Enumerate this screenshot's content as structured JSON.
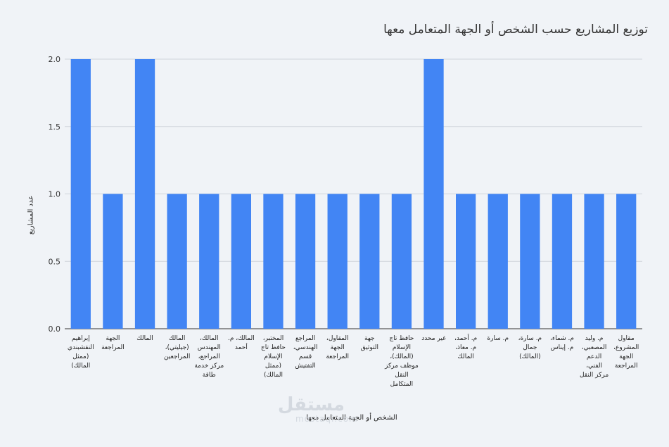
{
  "chart_data": {
    "type": "bar",
    "title": "توزيع المشاريع حسب الشخص أو الجهة المتعامل معها",
    "xlabel": "الشخص أو الجهة المتعامل معها",
    "ylabel": "عدد المشاريع",
    "ylim": [
      0,
      2.0
    ],
    "yticks": [
      "0.0",
      "0.5",
      "1.0",
      "1.5",
      "2.0"
    ],
    "grid": true,
    "bar_color": "#4285f4",
    "categories": [
      "إبراهيم النقشبندي (ممثل المالك)",
      "الجهة المراجعة",
      "المالك",
      "المالك (جيليتي)، المراجعين",
      "المالك، المهندس المراجع، مركز خدمة طاقة",
      "المالك، م. أحمد",
      "المختبر، حافظ تاج الإسلام (ممثل المالك)",
      "المراجع الهندسي، قسم التفتيش",
      "المقاول، الجهة المراجعة",
      "جهة التوثيق",
      "حافظ تاج الإسلام (المالك)، موظف مركز النقل المتكامل",
      "غير محدد",
      "م. أحمد، م. معاذ، المالك",
      "م. سارة",
      "م. سارة، جمال (المالك)",
      "م. شماء، م. إيناس",
      "م. وليد المصعبي، الدعم الفني، مركز النقل",
      "مقاول المشروع، الجهة المراجعة"
    ],
    "values": [
      2,
      1,
      2,
      1,
      1,
      1,
      1,
      1,
      1,
      1,
      1,
      2,
      1,
      1,
      1,
      1,
      1,
      1
    ]
  },
  "watermark": {
    "arabic": "مستقل",
    "latin": "mostaqi.com"
  }
}
